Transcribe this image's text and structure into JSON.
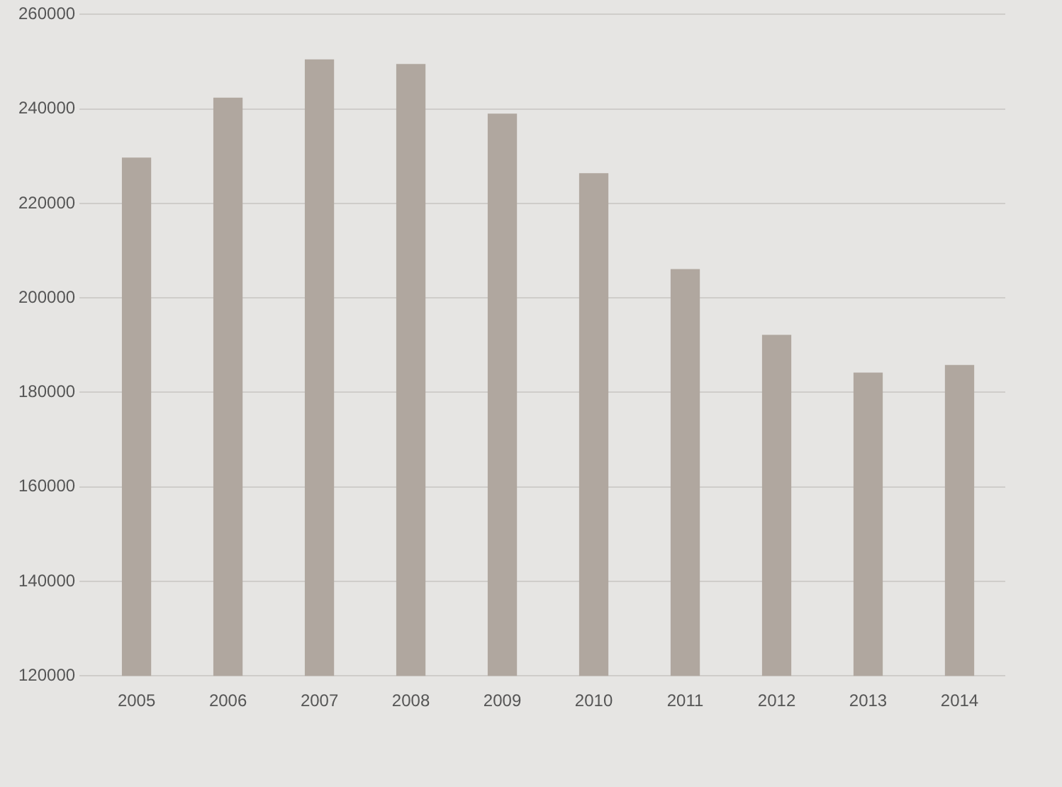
{
  "chart_data": {
    "type": "bar",
    "categories": [
      "2005",
      "2006",
      "2007",
      "2008",
      "2009",
      "2010",
      "2011",
      "2012",
      "2013",
      "2014"
    ],
    "values": [
      229700,
      242400,
      250500,
      249500,
      239000,
      226400,
      206100,
      192200,
      184200,
      185800
    ],
    "color": "#b0a79f",
    "ylim": [
      120000,
      260000
    ],
    "yticks": [
      120000,
      140000,
      160000,
      180000,
      200000,
      220000,
      240000,
      260000
    ],
    "grid": "y",
    "legend": false
  }
}
